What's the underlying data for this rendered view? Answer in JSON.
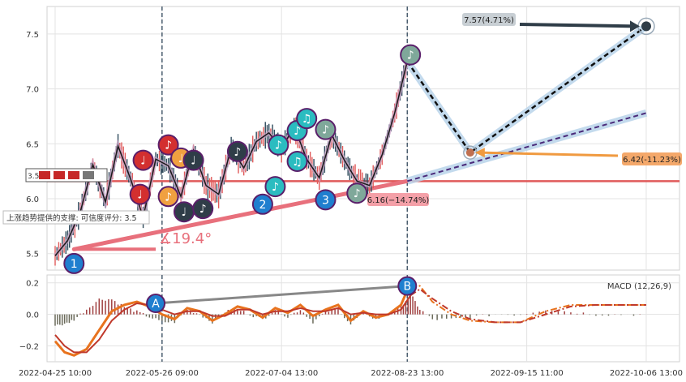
{
  "colors": {
    "up": "#e05a5a",
    "down": "#2e4a5c",
    "support": "#e8707c",
    "forecast_band": "#b8d4ea",
    "macd": "#e8731e",
    "signal": "#c0392b",
    "marker_blue": "#1f7fcf",
    "current_label_bg": "#f4a86a",
    "target_label_bg": "#c8cfd4"
  },
  "chart_data": [
    {
      "type": "line",
      "title": "",
      "x_ticks": [
        "2022-04-25 10:00",
        "2022-05-26 09:00",
        "2022-07-04 13:00",
        "2022-08-23 13:00",
        "2022-09-15 11:00",
        "2022-10-06 13:00"
      ],
      "y_ticks": [
        "5.5",
        "6.0",
        "6.5",
        "7.0",
        "7.5"
      ],
      "ylim": [
        5.35,
        7.75
      ],
      "grid": true,
      "series": [
        {
          "x": [
            0,
            4,
            8,
            12,
            16,
            20,
            24,
            28,
            32,
            36,
            40,
            44,
            48,
            52,
            56,
            60,
            64,
            68,
            72,
            76,
            80,
            84,
            88,
            92,
            96,
            100,
            104,
            108,
            112
          ],
          "values": [
            5.48,
            5.62,
            5.88,
            6.31,
            5.97,
            6.48,
            6.18,
            5.83,
            6.36,
            6.3,
            6.02,
            6.44,
            6.12,
            6.04,
            6.46,
            6.28,
            6.52,
            6.6,
            6.45,
            6.66,
            6.36,
            6.19,
            6.58,
            6.35,
            6.16,
            6.12,
            6.4,
            6.78,
            7.25
          ]
        }
      ],
      "forecast": [
        {
          "name": "",
          "x": [
            112,
            132,
            188
          ],
          "values": [
            7.25,
            6.42,
            7.57
          ]
        },
        {
          "name": "",
          "x": [
            112,
            188
          ],
          "values": [
            6.16,
            6.78
          ]
        }
      ],
      "horizontal_level": 6.16,
      "support_line": {
        "x": [
          6,
          112
        ],
        "values": [
          5.54,
          6.16
        ]
      },
      "markers": [
        {
          "label": "1",
          "x": 6,
          "y": 5.41,
          "kind": "number"
        },
        {
          "label": "2",
          "x": 66,
          "y": 5.95,
          "kind": "number"
        },
        {
          "label": "3",
          "x": 86,
          "y": 5.99,
          "kind": "number"
        },
        {
          "label": "♩",
          "x": 28,
          "y": 6.35,
          "kind": "note_red"
        },
        {
          "label": "♩",
          "x": 27,
          "y": 6.04,
          "kind": "note_red"
        },
        {
          "label": "♪",
          "x": 36,
          "y": 6.49,
          "kind": "note_red"
        },
        {
          "label": "♩",
          "x": 40,
          "y": 6.37,
          "kind": "note_orange"
        },
        {
          "label": "♪",
          "x": 36,
          "y": 6.02,
          "kind": "note_orange"
        },
        {
          "label": "♩",
          "x": 44,
          "y": 6.35,
          "kind": "note_dark"
        },
        {
          "label": "♩",
          "x": 41,
          "y": 5.88,
          "kind": "note_dark"
        },
        {
          "label": "♪",
          "x": 47,
          "y": 5.91,
          "kind": "note_dark"
        },
        {
          "label": "♪",
          "x": 58,
          "y": 6.43,
          "kind": "note_dark"
        },
        {
          "label": "♪",
          "x": 71,
          "y": 6.49,
          "kind": "note_teal"
        },
        {
          "label": "♪",
          "x": 70,
          "y": 6.11,
          "kind": "note_teal"
        },
        {
          "label": "♪",
          "x": 77,
          "y": 6.62,
          "kind": "note_teal"
        },
        {
          "label": "♫",
          "x": 80,
          "y": 6.73,
          "kind": "note_teal"
        },
        {
          "label": "♫",
          "x": 77,
          "y": 6.34,
          "kind": "note_teal"
        },
        {
          "label": "♪",
          "x": 86,
          "y": 6.63,
          "kind": "note_gray"
        },
        {
          "label": "♪",
          "x": 96,
          "y": 6.05,
          "kind": "note_gray"
        },
        {
          "label": "♪",
          "x": 113,
          "y": 7.31,
          "kind": "note_gray"
        }
      ],
      "annotations": {
        "target": "7.57(4.71%)",
        "current": "6.42(-11.23%)",
        "support": "6.16(−14.74%)",
        "angle": "∡19.4°",
        "support_note": "上涨趋势提供的支撑: 可信度评分: 3.5",
        "level_box": "3.5"
      }
    },
    {
      "type": "line",
      "title": "MACD (12,26,9)",
      "y_ticks": [
        "−0.2",
        "0.0",
        "0.2"
      ],
      "ylim": [
        -0.3,
        0.25
      ],
      "series": [
        {
          "name": "",
          "x": [
            0,
            3,
            6,
            10,
            14,
            18,
            22,
            26,
            30,
            34,
            38,
            42,
            46,
            50,
            54,
            58,
            62,
            66,
            70,
            74,
            78,
            82,
            86,
            90,
            94,
            98,
            102,
            106,
            110,
            113,
            116,
            120,
            126,
            132,
            140,
            148,
            156,
            164,
            172,
            180,
            188
          ],
          "values": [
            -0.17,
            -0.24,
            -0.26,
            -0.22,
            -0.1,
            0.02,
            0.06,
            0.08,
            0.05,
            0.0,
            -0.03,
            0.04,
            0.02,
            -0.04,
            0.0,
            0.05,
            0.03,
            -0.02,
            0.04,
            0.01,
            0.06,
            -0.01,
            0.03,
            0.06,
            -0.04,
            0.02,
            -0.02,
            0.0,
            0.06,
            0.2,
            0.18,
            0.08,
            0.0,
            -0.04,
            -0.05,
            -0.05,
            0.02,
            0.06,
            0.06,
            0.06,
            0.06
          ]
        },
        {
          "name": "",
          "x": [
            0,
            3,
            6,
            10,
            14,
            18,
            22,
            26,
            30,
            34,
            38,
            42,
            46,
            50,
            54,
            58,
            62,
            66,
            70,
            74,
            78,
            82,
            86,
            90,
            94,
            98,
            102,
            106,
            110,
            113,
            116,
            120,
            126,
            132,
            140,
            148,
            156,
            164,
            172,
            180,
            188
          ],
          "values": [
            -0.13,
            -0.2,
            -0.24,
            -0.24,
            -0.16,
            -0.04,
            0.03,
            0.07,
            0.06,
            0.03,
            0.0,
            0.02,
            0.02,
            -0.01,
            -0.01,
            0.03,
            0.03,
            0.0,
            0.02,
            0.02,
            0.04,
            0.02,
            0.02,
            0.04,
            0.0,
            0.01,
            0.0,
            0.0,
            0.03,
            0.12,
            0.16,
            0.1,
            0.02,
            -0.03,
            -0.05,
            -0.05,
            0.0,
            0.05,
            0.06,
            0.06,
            0.06
          ]
        }
      ],
      "markers": [
        {
          "label": "A",
          "x": 32,
          "y": 0.07
        },
        {
          "label": "B",
          "x": 112,
          "y": 0.18
        }
      ]
    }
  ]
}
